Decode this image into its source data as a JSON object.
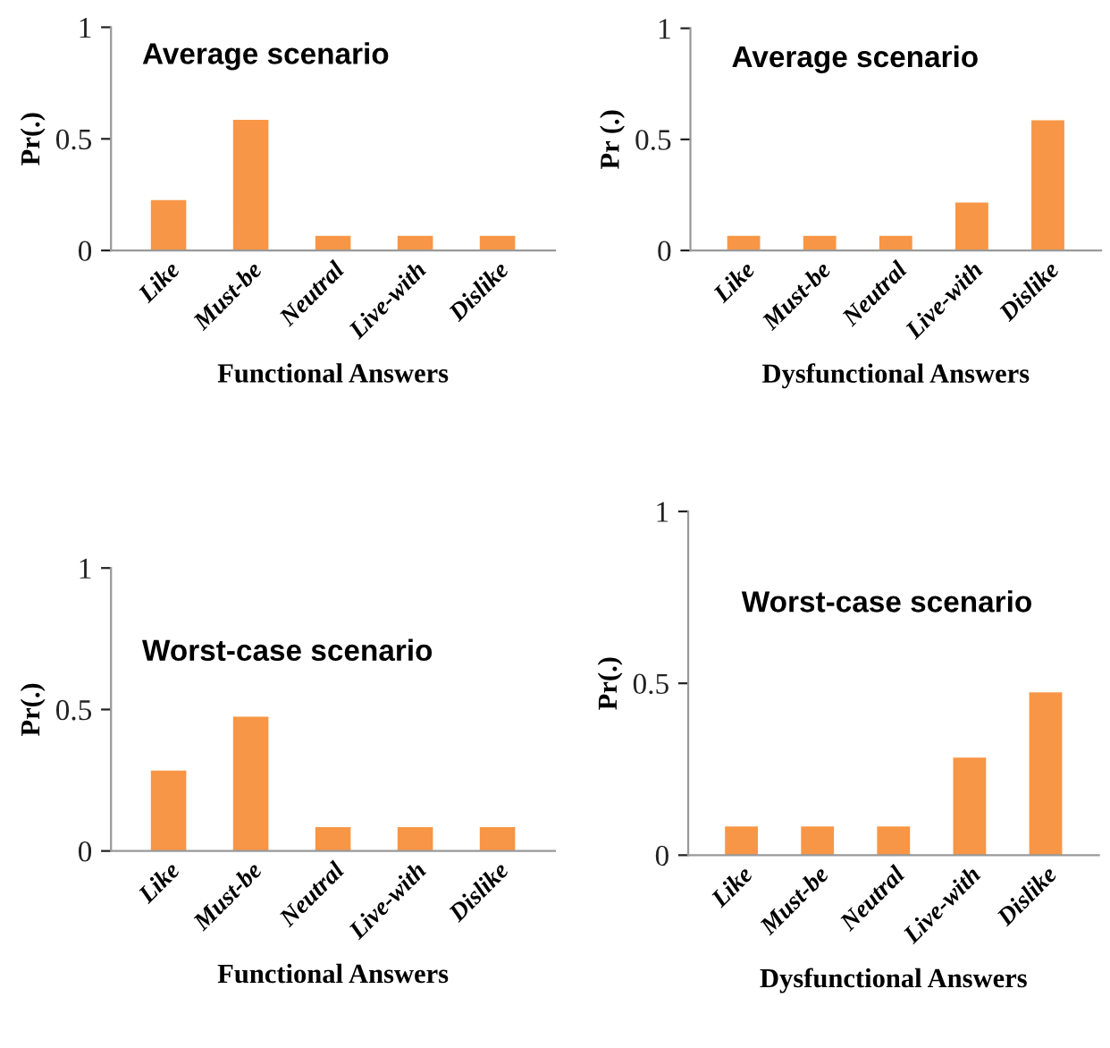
{
  "chart_data": [
    {
      "type": "bar",
      "title": "Average scenario",
      "xlabel": "Functional Answers",
      "ylabel": "Pr(.)",
      "categories": [
        "Like",
        "Must-be",
        "Neutral",
        "Live-with",
        "Dislike"
      ],
      "values": [
        0.22,
        0.58,
        0.06,
        0.06,
        0.06
      ],
      "color": "#f79646",
      "ylim": [
        0,
        1
      ],
      "yticks": [
        0,
        0.5,
        1
      ],
      "grid": false,
      "legend": false
    },
    {
      "type": "bar",
      "title": "Average scenario",
      "xlabel": "Dysfunctional Answers",
      "ylabel": "Pr (.)",
      "categories": [
        "Like",
        "Must-be",
        "Neutral",
        "Live-with",
        "Dislike"
      ],
      "values": [
        0.06,
        0.06,
        0.06,
        0.21,
        0.58
      ],
      "color": "#f79646",
      "ylim": [
        0,
        1
      ],
      "yticks": [
        0,
        0.5,
        1
      ],
      "grid": false,
      "legend": false
    },
    {
      "type": "bar",
      "title": "Worst-case scenario",
      "xlabel": "Functional Answers",
      "ylabel": "Pr(.)",
      "categories": [
        "Like",
        "Must-be",
        "Neutral",
        "Live-with",
        "Dislike"
      ],
      "values": [
        0.28,
        0.47,
        0.08,
        0.08,
        0.08
      ],
      "color": "#f79646",
      "ylim": [
        0,
        1
      ],
      "yticks": [
        0,
        0.5,
        1
      ],
      "grid": false,
      "legend": false
    },
    {
      "type": "bar",
      "title": "Worst-case scenario",
      "xlabel": "Dysfunctional Answers",
      "ylabel": "Pr(.)",
      "categories": [
        "Like",
        "Must-be",
        "Neutral",
        "Live-with",
        "Dislike"
      ],
      "values": [
        0.08,
        0.08,
        0.08,
        0.28,
        0.47
      ],
      "color": "#f79646",
      "ylim": [
        0,
        1
      ],
      "yticks": [
        0,
        0.5,
        1
      ],
      "grid": false,
      "legend": false
    }
  ]
}
